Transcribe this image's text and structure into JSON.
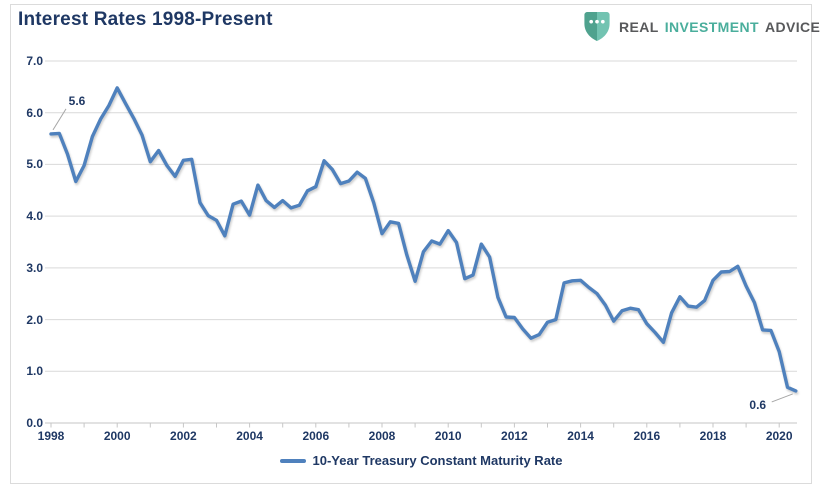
{
  "header": {
    "title": "Interest Rates 1998-Present",
    "logo": {
      "icon": "shield-dots-icon",
      "shield_colors": [
        "#4fa28e",
        "#72c3b1"
      ],
      "dot_color": "#ffffff",
      "words": [
        {
          "text": "REAL",
          "color": "#58595b"
        },
        {
          "text": "INVESTMENT",
          "color": "#4aae9c"
        },
        {
          "text": "ADVICE",
          "color": "#58595b"
        }
      ]
    }
  },
  "colors": {
    "frame_border": "#dbdbdb",
    "axis_text": "#1f3864",
    "leader_line": "#a6a6a6"
  },
  "chart_data": {
    "type": "line",
    "title": "Interest Rates 1998-Present",
    "series_name": "10-Year Treasury Constant Maturity Rate",
    "line_color": "#4f81bd",
    "gridline_color": "#d9d9d9",
    "axis_line_color": "#c6c6c6",
    "grid": "horizontal",
    "xlim": [
      1998,
      2020.5
    ],
    "ylim": [
      0,
      7
    ],
    "y_ticks": [
      0,
      1,
      2,
      3,
      4,
      5,
      6,
      7
    ],
    "y_tick_labels": [
      "0.0",
      "1.0",
      "2.0",
      "3.0",
      "4.0",
      "5.0",
      "6.0",
      "7.0"
    ],
    "x_tick_years": [
      1998,
      2000,
      2002,
      2004,
      2006,
      2008,
      2010,
      2012,
      2014,
      2016,
      2018,
      2020
    ],
    "x_minor_tick_step": 1,
    "x_start": 1998.0,
    "x_step": 0.25,
    "x_unit": "quarterly average, year",
    "values": [
      5.59,
      5.6,
      5.2,
      4.67,
      4.98,
      5.54,
      5.88,
      6.14,
      6.48,
      6.18,
      5.89,
      5.57,
      5.05,
      5.27,
      4.98,
      4.77,
      5.08,
      5.1,
      4.26,
      4.01,
      3.92,
      3.62,
      4.23,
      4.29,
      4.02,
      4.6,
      4.3,
      4.17,
      4.3,
      4.16,
      4.21,
      4.49,
      4.57,
      5.07,
      4.9,
      4.63,
      4.68,
      4.85,
      4.73,
      4.26,
      3.66,
      3.89,
      3.86,
      3.25,
      2.74,
      3.31,
      3.52,
      3.46,
      3.72,
      3.49,
      2.79,
      2.86,
      3.46,
      3.21,
      2.43,
      2.05,
      2.04,
      1.82,
      1.64,
      1.71,
      1.95,
      2.0,
      2.71,
      2.75,
      2.76,
      2.62,
      2.5,
      2.28,
      1.97,
      2.17,
      2.22,
      2.19,
      1.92,
      1.75,
      1.56,
      2.13,
      2.44,
      2.26,
      2.24,
      2.37,
      2.76,
      2.92,
      2.93,
      3.03,
      2.65,
      2.33,
      1.8,
      1.79,
      1.38,
      0.69,
      0.62
    ],
    "legend": {
      "label": "10-Year Treasury Constant Maturity Rate",
      "position": "bottom-center"
    },
    "annotations": [
      {
        "text": "5.6",
        "year": 1998.0,
        "value": 5.59,
        "placement": "above-right"
      },
      {
        "text": "0.6",
        "year": 2020.5,
        "value": 0.62,
        "placement": "below-left"
      }
    ]
  }
}
